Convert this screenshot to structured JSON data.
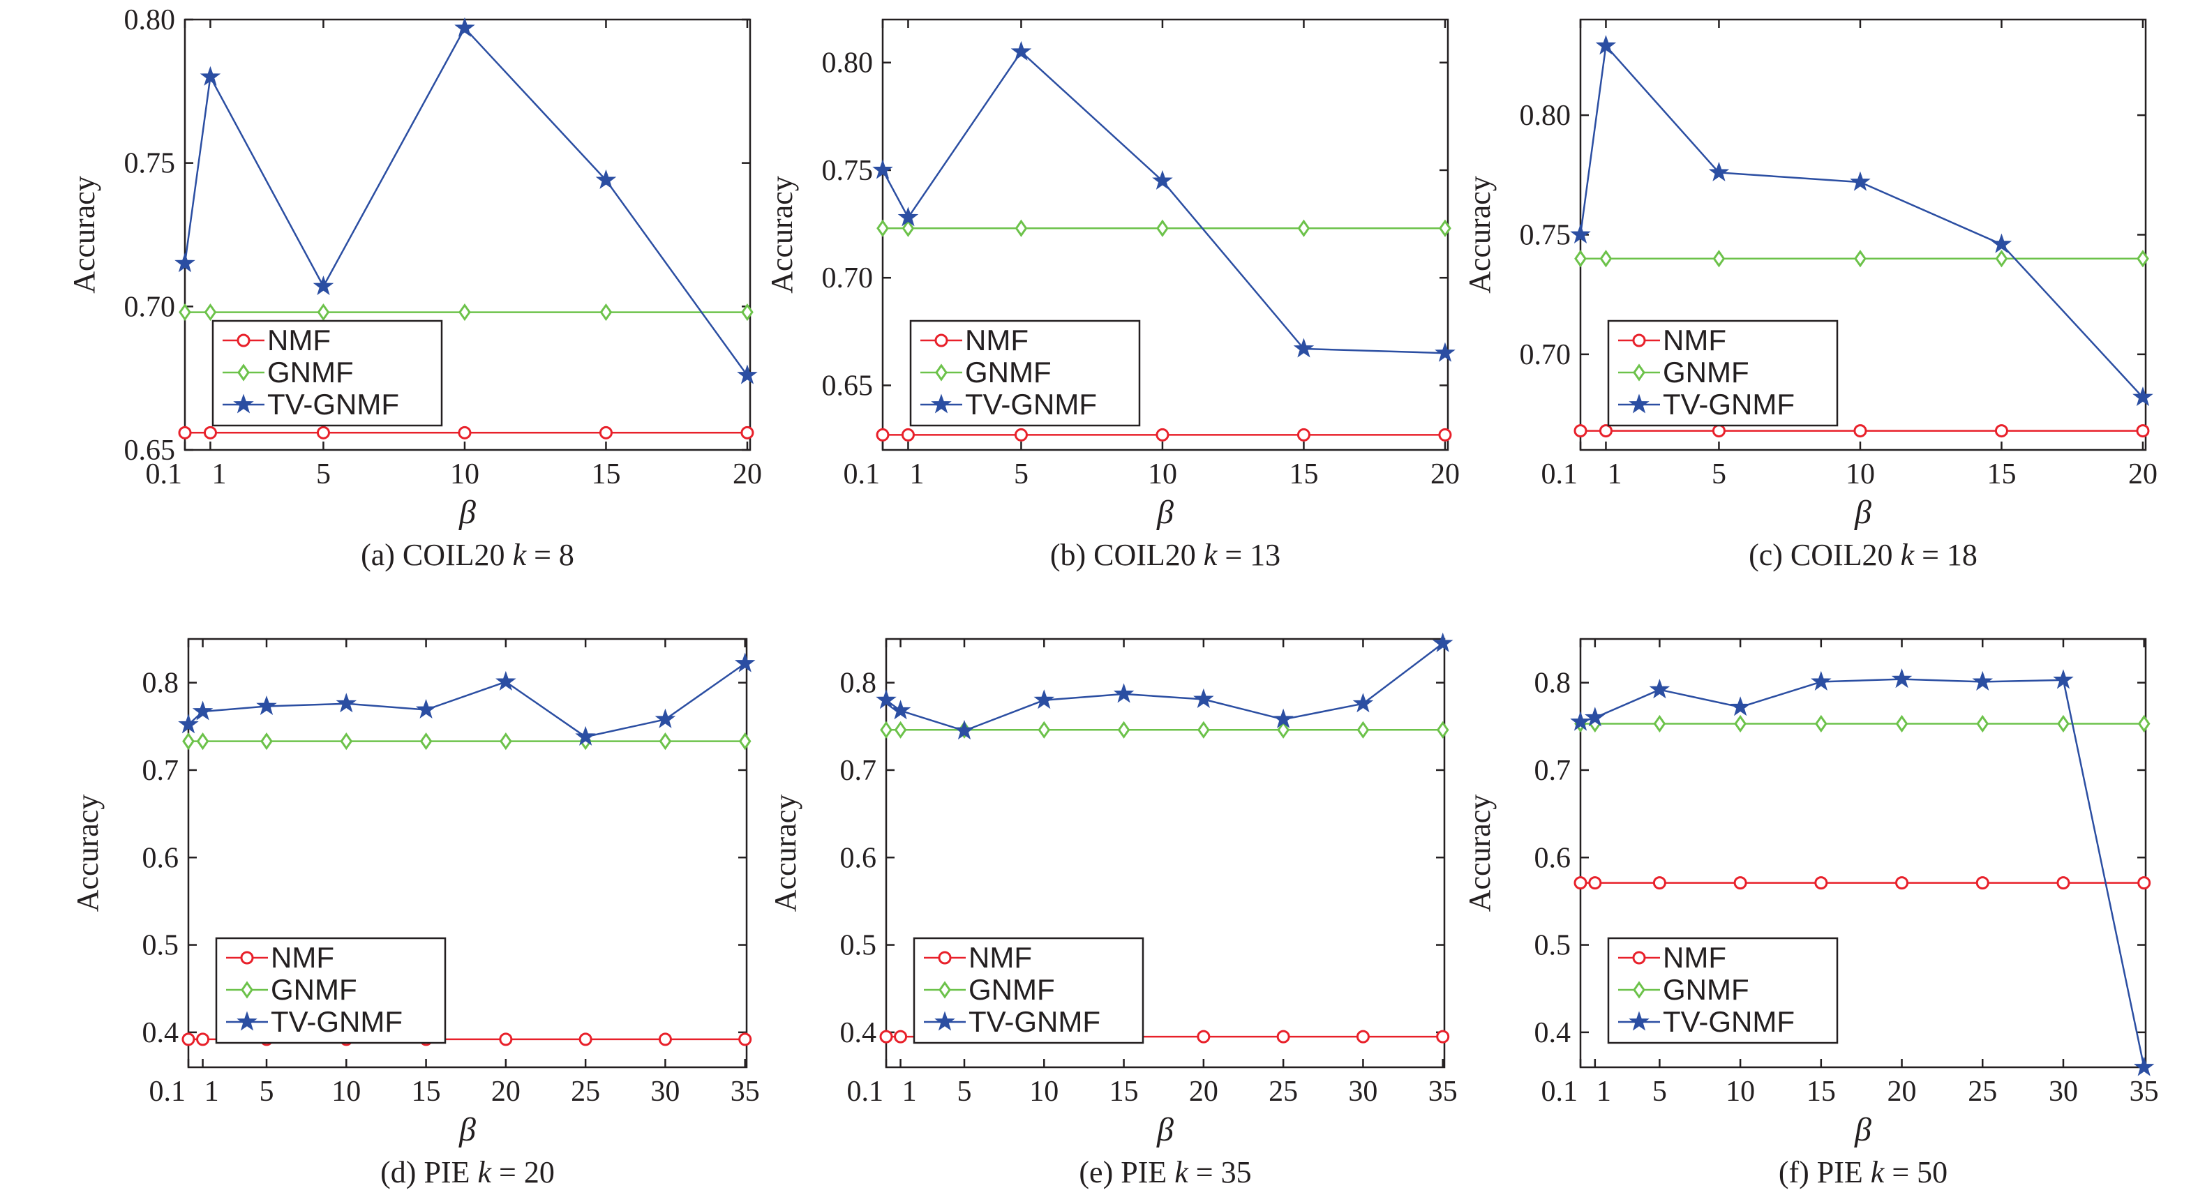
{
  "colors": {
    "NMF": "#e8202a",
    "GNMF": "#6cc24a",
    "TV-GNMF": "#2b4ea2",
    "axis": "#231f20"
  },
  "markers": {
    "NMF": "circle",
    "GNMF": "diamond",
    "TV-GNMF": "star"
  },
  "chart_data": [
    {
      "type": "line",
      "caption_prefix": "(a) COIL20",
      "caption_k": "k",
      "caption_suffix": " = 8",
      "xlabel": "β",
      "ylabel": "Accuracy",
      "x": [
        0.1,
        1,
        5,
        10,
        15,
        20
      ],
      "xticks": [
        0.1,
        1,
        5,
        10,
        15,
        20
      ],
      "xtick_labels": [
        "0.1",
        "1",
        "5",
        "10",
        "15",
        "20"
      ],
      "xlim": [
        0.1,
        20.1
      ],
      "ylim": [
        0.65,
        0.8
      ],
      "yticks": [
        0.65,
        0.7,
        0.75,
        0.8
      ],
      "ytick_labels": [
        "0.65",
        "0.70",
        "0.75",
        "0.80"
      ],
      "legend": "lower-left",
      "series": [
        {
          "name": "NMF",
          "values": [
            0.656,
            0.656,
            0.656,
            0.656,
            0.656,
            0.656
          ]
        },
        {
          "name": "GNMF",
          "values": [
            0.698,
            0.698,
            0.698,
            0.698,
            0.698,
            0.698
          ]
        },
        {
          "name": "TV-GNMF",
          "values": [
            0.715,
            0.78,
            0.707,
            0.797,
            0.744,
            0.676
          ]
        }
      ]
    },
    {
      "type": "line",
      "caption_prefix": "(b) COIL20",
      "caption_k": "k",
      "caption_suffix": " = 13",
      "xlabel": "β",
      "ylabel": "Accuracy",
      "x": [
        0.1,
        1,
        5,
        10,
        15,
        20
      ],
      "xticks": [
        0.1,
        1,
        5,
        10,
        15,
        20
      ],
      "xtick_labels": [
        "0.1",
        "1",
        "5",
        "10",
        "15",
        "20"
      ],
      "xlim": [
        0.1,
        20.1
      ],
      "ylim": [
        0.62,
        0.82
      ],
      "yticks": [
        0.65,
        0.7,
        0.75,
        0.8
      ],
      "ytick_labels": [
        "0.65",
        "0.70",
        "0.75",
        "0.80"
      ],
      "legend": "lower-left",
      "series": [
        {
          "name": "NMF",
          "values": [
            0.627,
            0.627,
            0.627,
            0.627,
            0.627,
            0.627
          ]
        },
        {
          "name": "GNMF",
          "values": [
            0.723,
            0.723,
            0.723,
            0.723,
            0.723,
            0.723
          ]
        },
        {
          "name": "TV-GNMF",
          "values": [
            0.75,
            0.728,
            0.805,
            0.745,
            0.667,
            0.665
          ]
        }
      ]
    },
    {
      "type": "line",
      "caption_prefix": "(c) COIL20",
      "caption_k": "k",
      "caption_suffix": " = 18",
      "xlabel": "β",
      "ylabel": "Accuracy",
      "x": [
        0.1,
        1,
        5,
        10,
        15,
        20
      ],
      "xticks": [
        0.1,
        1,
        5,
        10,
        15,
        20
      ],
      "xtick_labels": [
        "0.1",
        "1",
        "5",
        "10",
        "15",
        "20"
      ],
      "xlim": [
        0.1,
        20.1
      ],
      "ylim": [
        0.66,
        0.84
      ],
      "yticks": [
        0.7,
        0.75,
        0.8
      ],
      "ytick_labels": [
        "0.70",
        "0.75",
        "0.80"
      ],
      "legend": "lower-left",
      "series": [
        {
          "name": "NMF",
          "values": [
            0.668,
            0.668,
            0.668,
            0.668,
            0.668,
            0.668
          ]
        },
        {
          "name": "GNMF",
          "values": [
            0.74,
            0.74,
            0.74,
            0.74,
            0.74,
            0.74
          ]
        },
        {
          "name": "TV-GNMF",
          "values": [
            0.75,
            0.829,
            0.776,
            0.772,
            0.746,
            0.682
          ]
        }
      ]
    },
    {
      "type": "line",
      "caption_prefix": "(d) PIE",
      "caption_k": "k",
      "caption_suffix": " = 20",
      "xlabel": "β",
      "ylabel": "Accuracy",
      "x": [
        0.1,
        1,
        5,
        10,
        15,
        20,
        25,
        30,
        35
      ],
      "xticks": [
        0.1,
        1,
        5,
        10,
        15,
        20,
        25,
        30,
        35
      ],
      "xtick_labels": [
        "0.1",
        "1",
        "5",
        "10",
        "15",
        "20",
        "25",
        "30",
        "35"
      ],
      "xlim": [
        0.1,
        35.1
      ],
      "ylim": [
        0.36,
        0.85
      ],
      "yticks": [
        0.4,
        0.5,
        0.6,
        0.7,
        0.8
      ],
      "ytick_labels": [
        "0.4",
        "0.5",
        "0.6",
        "0.7",
        "0.8"
      ],
      "legend": "lower-left",
      "series": [
        {
          "name": "NMF",
          "values": [
            0.392,
            0.392,
            0.392,
            0.392,
            0.392,
            0.392,
            0.392,
            0.392,
            0.392
          ]
        },
        {
          "name": "GNMF",
          "values": [
            0.733,
            0.733,
            0.733,
            0.733,
            0.733,
            0.733,
            0.733,
            0.733,
            0.733
          ]
        },
        {
          "name": "TV-GNMF",
          "values": [
            0.752,
            0.767,
            0.773,
            0.776,
            0.769,
            0.801,
            0.738,
            0.758,
            0.822
          ]
        }
      ]
    },
    {
      "type": "line",
      "caption_prefix": "(e) PIE",
      "caption_k": "k",
      "caption_suffix": " = 35",
      "xlabel": "β",
      "ylabel": "Accuracy",
      "x": [
        0.1,
        1,
        5,
        10,
        15,
        20,
        25,
        30,
        35
      ],
      "xticks": [
        0.1,
        1,
        5,
        10,
        15,
        20,
        25,
        30,
        35
      ],
      "xtick_labels": [
        "0.1",
        "1",
        "5",
        "10",
        "15",
        "20",
        "25",
        "30",
        "35"
      ],
      "xlim": [
        0.1,
        35.1
      ],
      "ylim": [
        0.36,
        0.85
      ],
      "yticks": [
        0.4,
        0.5,
        0.6,
        0.7,
        0.8
      ],
      "ytick_labels": [
        "0.4",
        "0.5",
        "0.6",
        "0.7",
        "0.8"
      ],
      "legend": "lower-left",
      "series": [
        {
          "name": "NMF",
          "values": [
            0.395,
            0.395,
            0.395,
            0.395,
            0.395,
            0.395,
            0.395,
            0.395,
            0.395
          ]
        },
        {
          "name": "GNMF",
          "values": [
            0.746,
            0.746,
            0.746,
            0.746,
            0.746,
            0.746,
            0.746,
            0.746,
            0.746
          ]
        },
        {
          "name": "TV-GNMF",
          "values": [
            0.78,
            0.768,
            0.745,
            0.78,
            0.787,
            0.781,
            0.758,
            0.776,
            0.845
          ]
        }
      ]
    },
    {
      "type": "line",
      "caption_prefix": "(f) PIE",
      "caption_k": "k",
      "caption_suffix": " = 50",
      "xlabel": "β",
      "ylabel": "Accuracy",
      "x": [
        0.1,
        1,
        5,
        10,
        15,
        20,
        25,
        30,
        35
      ],
      "xticks": [
        0.1,
        1,
        5,
        10,
        15,
        20,
        25,
        30,
        35
      ],
      "xtick_labels": [
        "0.1",
        "1",
        "5",
        "10",
        "15",
        "20",
        "25",
        "30",
        "35"
      ],
      "xlim": [
        0.1,
        35.1
      ],
      "ylim": [
        0.36,
        0.85
      ],
      "yticks": [
        0.4,
        0.5,
        0.6,
        0.7,
        0.8
      ],
      "ytick_labels": [
        "0.4",
        "0.5",
        "0.6",
        "0.7",
        "0.8"
      ],
      "legend": "lower-left",
      "series": [
        {
          "name": "NMF",
          "values": [
            0.571,
            0.571,
            0.571,
            0.571,
            0.571,
            0.571,
            0.571,
            0.571,
            0.571
          ]
        },
        {
          "name": "GNMF",
          "values": [
            0.753,
            0.753,
            0.753,
            0.753,
            0.753,
            0.753,
            0.753,
            0.753,
            0.753
          ]
        },
        {
          "name": "TV-GNMF",
          "values": [
            0.755,
            0.76,
            0.792,
            0.772,
            0.801,
            0.804,
            0.801,
            0.803,
            0.36
          ]
        }
      ]
    }
  ]
}
